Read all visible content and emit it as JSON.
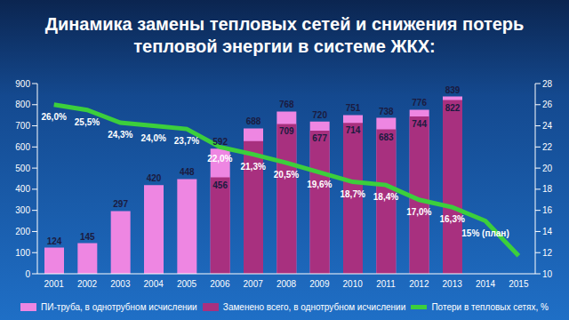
{
  "chart_data": {
    "type": "bar",
    "title": "Динамика замены тепловых сетей и снижения потерь тепловой энергии в системе ЖКХ:",
    "categories": [
      "2001",
      "2002",
      "2003",
      "2004",
      "2005",
      "2006",
      "2007",
      "2008",
      "2009",
      "2010",
      "2011",
      "2012",
      "2013",
      "2014",
      "2015"
    ],
    "series": [
      {
        "name": "ПИ-труба, в однотрубном исчислении",
        "type": "bar",
        "color": "#ee86e2",
        "values": [
          124,
          145,
          297,
          420,
          448,
          592,
          688,
          768,
          720,
          751,
          738,
          776,
          839,
          null,
          null
        ]
      },
      {
        "name": "Заменено всего, в однотрубном исчислении",
        "type": "bar",
        "color": "#a8307f",
        "values": [
          null,
          null,
          null,
          null,
          null,
          456,
          628,
          709,
          677,
          714,
          683,
          744,
          822,
          null,
          null
        ],
        "value_labels": [
          null,
          null,
          null,
          null,
          null,
          "456",
          null,
          "709",
          "677",
          "714",
          "683",
          "744",
          "822",
          null,
          null
        ]
      },
      {
        "name": "Потери в тепловых сетях, %",
        "type": "line",
        "axis": "y2",
        "color": "#3ccf3c",
        "values": [
          26.0,
          25.5,
          24.3,
          24.0,
          23.7,
          22.0,
          21.3,
          20.5,
          19.6,
          18.7,
          18.4,
          17.0,
          16.3,
          15,
          11.7
        ],
        "value_labels": [
          "26,0%",
          "25,5%",
          "24,3%",
          "24,0%",
          "23,7%",
          "22,0%",
          "21,3%",
          "20,5%",
          "19,6%",
          "18,7%",
          "18,4%",
          "17,0%",
          "16,3%",
          "15% (план)",
          null
        ]
      }
    ],
    "ylim": [
      0,
      900
    ],
    "yticks": [
      0,
      100,
      200,
      300,
      400,
      500,
      600,
      700,
      800,
      900
    ],
    "y2lim": [
      10,
      28
    ],
    "y2ticks": [
      10,
      12,
      14,
      16,
      18,
      20,
      22,
      24,
      26,
      28
    ],
    "data_labels": true,
    "grid": false,
    "legend": "bottom"
  }
}
